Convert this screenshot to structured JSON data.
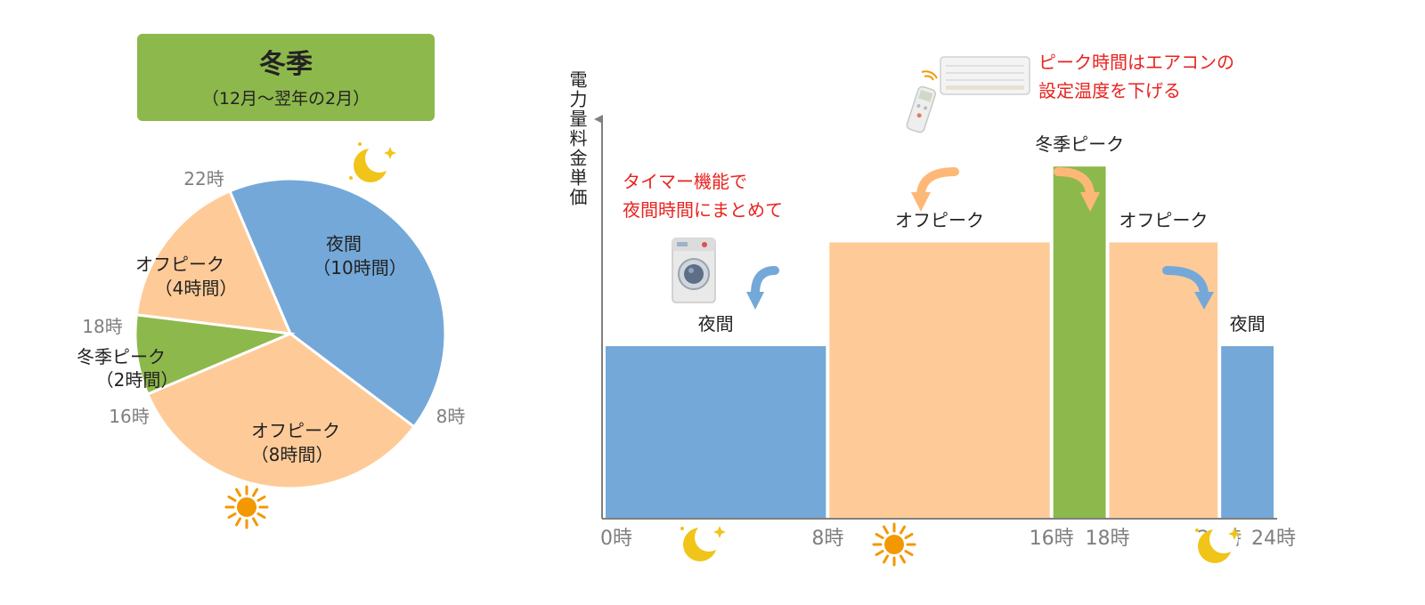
{
  "colors": {
    "night": "#74a8d8",
    "offpeak": "#fecb98",
    "peak": "#8db84c",
    "arrow_night": "#74a8d8",
    "arrow_offpeak": "#fdb878",
    "note_red": "#e8231f",
    "axis_gray": "#7f7f7f",
    "text": "#222222",
    "moon": "#f0c419",
    "sun": "#f39800"
  },
  "season_box": {
    "title": "冬季",
    "subtitle": "（12月〜翌年の2月）"
  },
  "chart_data": [
    {
      "type": "pie",
      "unit": "hours",
      "slices": [
        {
          "name_line1": "夜間",
          "name_line2": "（10時間）",
          "value": 10,
          "color": "#74a8d8"
        },
        {
          "name_line1": "オフピーク",
          "name_line2": "（8時間）",
          "value": 8,
          "color": "#fecb98"
        },
        {
          "name_line1": "冬季ピーク",
          "name_line2": "（2時間）",
          "value": 2,
          "color": "#8db84c"
        },
        {
          "name_line1": "オフピーク",
          "name_line2": "（4時間）",
          "value": 4,
          "color": "#fecb98"
        }
      ],
      "boundary_labels": [
        "8時",
        "16時",
        "18時",
        "22時"
      ],
      "icons": [
        "moon-icon",
        "sun-icon"
      ]
    },
    {
      "type": "bar",
      "ylabel": "電力量料金単価",
      "xlim": [
        0,
        24
      ],
      "x_tick_labels": [
        "0時",
        "8時",
        "16時",
        "18時",
        "22時",
        "24時"
      ],
      "bars": [
        {
          "label": "夜間",
          "start": 0,
          "end": 8,
          "level": 0.43,
          "color": "#74a8d8"
        },
        {
          "label": "オフピーク",
          "start": 8,
          "end": 16,
          "level": 0.69,
          "color": "#fecb98"
        },
        {
          "label": "冬季ピーク",
          "start": 16,
          "end": 18,
          "level": 0.88,
          "color": "#8db84c"
        },
        {
          "label": "オフピーク",
          "start": 18,
          "end": 22,
          "level": 0.69,
          "color": "#fecb98"
        },
        {
          "label": "夜間",
          "start": 22,
          "end": 24,
          "level": 0.43,
          "color": "#74a8d8"
        }
      ],
      "annotations": {
        "timer_note": [
          "タイマー機能で",
          "夜間時間にまとめて"
        ],
        "aircon_note": [
          "ピーク時間はエアコンの",
          "設定温度を下げる"
        ]
      },
      "icons": [
        "washing-machine-icon",
        "air-conditioner-icon",
        "remote-control-icon",
        "moon-icon",
        "sun-icon"
      ]
    }
  ]
}
